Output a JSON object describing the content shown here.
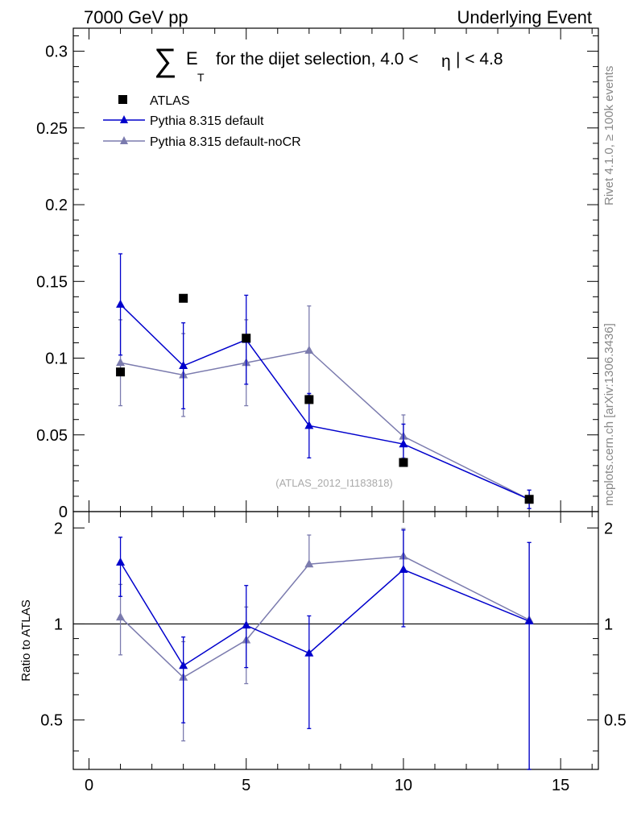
{
  "header": {
    "left": "7000 GeV pp",
    "right": "Underlying Event"
  },
  "title": {
    "sum_symbol": "∑",
    "var": "E",
    "sub": "T",
    "rest": "for the dijet selection, 4.0 <",
    "eta": "η",
    "tail": "| < 4.8"
  },
  "side_labels": {
    "rivet": "Rivet 4.1.0, ≥ 100k events",
    "mcplots": "mcplots.cern.ch [arXiv:1306.3436]"
  },
  "watermark": "(ATLAS_2012_I1183818)",
  "colors": {
    "atlas": "#000000",
    "default": "#0000cc",
    "nocr": "#7b7bae",
    "axis": "#000000"
  },
  "chart_data": [
    {
      "name": "main",
      "type": "scatter",
      "xlim": [
        -0.5,
        16.2
      ],
      "ylim": [
        0,
        0.315
      ],
      "yticks": [
        0,
        0.05,
        0.1,
        0.15,
        0.2,
        0.25,
        0.3
      ],
      "ytick_labels": [
        "0",
        "0.05",
        "0.1",
        "0.15",
        "0.2",
        "0.25",
        "0.3"
      ],
      "legend": [
        "ATLAS",
        "Pythia 8.315 default",
        "Pythia 8.315 default-noCR"
      ],
      "series": [
        {
          "name": "ATLAS",
          "style": "square",
          "x": [
            1,
            3,
            5,
            7,
            10,
            14
          ],
          "y": [
            0.091,
            0.139,
            0.113,
            0.073,
            0.032,
            0.008
          ],
          "err": [
            0.0,
            0.0,
            0.0,
            0.0,
            0.0,
            0.0
          ]
        },
        {
          "name": "Pythia 8.315 default",
          "style": "triangle-line",
          "x": [
            1,
            3,
            5,
            7,
            10,
            14
          ],
          "y": [
            0.135,
            0.095,
            0.112,
            0.056,
            0.044,
            0.008
          ],
          "err": [
            0.033,
            0.028,
            0.029,
            0.021,
            0.013,
            0.006
          ]
        },
        {
          "name": "Pythia 8.315 default-noCR",
          "style": "triangle-line",
          "x": [
            1,
            3,
            5,
            7,
            10,
            14
          ],
          "y": [
            0.097,
            0.089,
            0.097,
            0.105,
            0.049,
            0.008
          ],
          "err": [
            0.028,
            0.027,
            0.028,
            0.029,
            0.014,
            0.006
          ]
        }
      ]
    },
    {
      "name": "ratio",
      "type": "line",
      "ylabel": "Ratio to ATLAS",
      "xlim": [
        -0.5,
        16.2
      ],
      "ylim": [
        0.35,
        2.25
      ],
      "yticks": [
        0.5,
        1,
        2
      ],
      "ytick_labels": [
        "0.5",
        "1",
        "2"
      ],
      "xticks": [
        0,
        5,
        10,
        15
      ],
      "xtick_labels": [
        "0",
        "5",
        "10",
        "15"
      ],
      "reference": 1,
      "series": [
        {
          "name": "Pythia 8.315 default",
          "x": [
            1,
            3,
            5,
            7,
            10,
            14
          ],
          "y": [
            1.56,
            0.74,
            0.99,
            0.81,
            1.48,
            1.02
          ],
          "err_lo": [
            0.34,
            0.25,
            0.26,
            0.34,
            0.5,
            0.67
          ],
          "err_hi": [
            0.31,
            0.17,
            0.33,
            0.25,
            0.49,
            0.78
          ]
        },
        {
          "name": "Pythia 8.315 default-noCR",
          "x": [
            1,
            3,
            5,
            7,
            10,
            14
          ],
          "y": [
            1.05,
            0.68,
            0.89,
            1.54,
            1.63,
            1.03
          ],
          "err_lo": [
            0.25,
            0.25,
            0.24,
            0.0,
            0.0,
            0.68
          ],
          "err_hi": [
            0.28,
            0.2,
            0.24,
            0.36,
            0.36,
            0.77
          ]
        }
      ]
    }
  ]
}
